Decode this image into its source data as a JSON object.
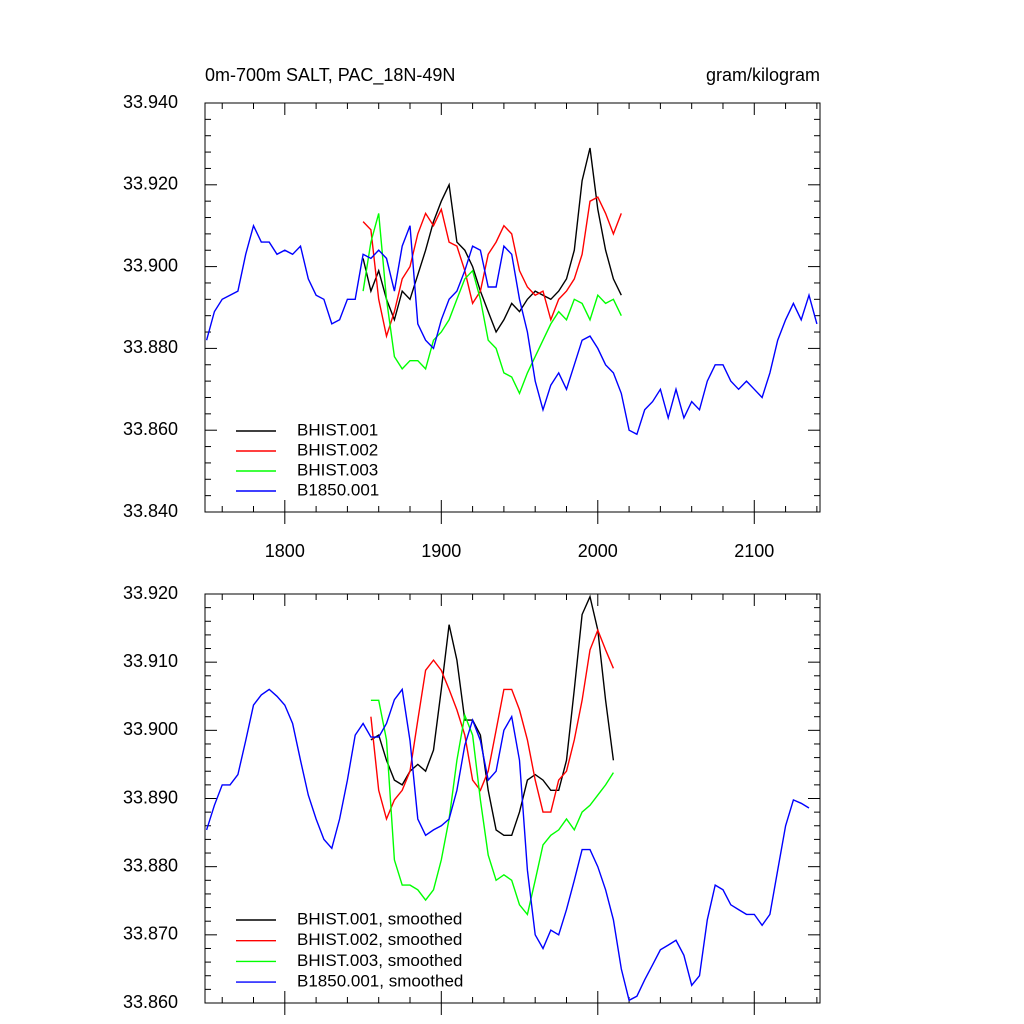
{
  "chart_data": [
    {
      "type": "line",
      "title": "0m-700m SALT, PAC_18N-49N",
      "subtitle": "gram/kilogram",
      "xlim": [
        1749,
        2142
      ],
      "xticks": [
        1800,
        1900,
        2000,
        2100
      ],
      "ylim": [
        33.84,
        33.94
      ],
      "yticks": [
        {
          "value": 33.84,
          "label": "33.840"
        },
        {
          "value": 33.86,
          "label": "33.860"
        },
        {
          "value": 33.88,
          "label": "33.880"
        },
        {
          "value": 33.9,
          "label": "33.900"
        },
        {
          "value": 33.92,
          "label": "33.920"
        },
        {
          "value": 33.94,
          "label": "33.940"
        }
      ],
      "legend": "lower left",
      "series": [
        {
          "name": "BHIST.001",
          "color": "#000000",
          "x": [
            1850,
            1855,
            1860,
            1865,
            1870,
            1875,
            1880,
            1885,
            1890,
            1895,
            1900,
            1905,
            1910,
            1915,
            1920,
            1925,
            1930,
            1935,
            1940,
            1945,
            1950,
            1955,
            1960,
            1965,
            1970,
            1975,
            1980,
            1985,
            1990,
            1995,
            2000,
            2005,
            2010,
            2015
          ],
          "values": [
            33.902,
            33.894,
            33.899,
            33.892,
            33.887,
            33.894,
            33.892,
            33.898,
            33.904,
            33.911,
            33.916,
            33.92,
            33.906,
            33.904,
            33.9,
            33.894,
            33.889,
            33.884,
            33.887,
            33.891,
            33.889,
            33.892,
            33.894,
            33.893,
            33.892,
            33.894,
            33.897,
            33.904,
            33.921,
            33.929,
            33.914,
            33.904,
            33.897,
            33.893
          ]
        },
        {
          "name": "BHIST.002",
          "color": "#ff0000",
          "x": [
            1850,
            1855,
            1860,
            1865,
            1870,
            1875,
            1880,
            1885,
            1890,
            1895,
            1900,
            1905,
            1910,
            1915,
            1920,
            1925,
            1930,
            1935,
            1940,
            1945,
            1950,
            1955,
            1960,
            1965,
            1970,
            1975,
            1980,
            1985,
            1990,
            1995,
            2000,
            2005,
            2010,
            2015
          ],
          "values": [
            33.911,
            33.909,
            33.892,
            33.883,
            33.889,
            33.897,
            33.9,
            33.908,
            33.913,
            33.91,
            33.914,
            33.906,
            33.905,
            33.899,
            33.891,
            33.894,
            33.903,
            33.906,
            33.91,
            33.908,
            33.899,
            33.895,
            33.893,
            33.894,
            33.887,
            33.892,
            33.894,
            33.897,
            33.903,
            33.916,
            33.917,
            33.913,
            33.908,
            33.913
          ]
        },
        {
          "name": "BHIST.003",
          "color": "#00ff00",
          "x": [
            1850,
            1855,
            1860,
            1865,
            1870,
            1875,
            1880,
            1885,
            1890,
            1895,
            1900,
            1905,
            1910,
            1915,
            1920,
            1925,
            1930,
            1935,
            1940,
            1945,
            1950,
            1955,
            1960,
            1965,
            1970,
            1975,
            1980,
            1985,
            1990,
            1995,
            2000,
            2005,
            2010,
            2015
          ],
          "values": [
            33.894,
            33.906,
            33.913,
            33.892,
            33.878,
            33.875,
            33.877,
            33.877,
            33.875,
            33.882,
            33.884,
            33.887,
            33.892,
            33.897,
            33.899,
            33.892,
            33.882,
            33.88,
            33.874,
            33.873,
            33.869,
            33.874,
            33.878,
            33.882,
            33.886,
            33.889,
            33.887,
            33.892,
            33.891,
            33.887,
            33.893,
            33.891,
            33.892,
            33.888
          ]
        },
        {
          "name": "B1850.001",
          "color": "#0000ff",
          "x": [
            1750,
            1755,
            1760,
            1765,
            1770,
            1775,
            1780,
            1785,
            1790,
            1795,
            1800,
            1805,
            1810,
            1815,
            1820,
            1825,
            1830,
            1835,
            1840,
            1845,
            1850,
            1855,
            1860,
            1865,
            1870,
            1875,
            1880,
            1885,
            1890,
            1895,
            1900,
            1905,
            1910,
            1915,
            1920,
            1925,
            1930,
            1935,
            1940,
            1945,
            1950,
            1955,
            1960,
            1965,
            1970,
            1975,
            1980,
            1985,
            1990,
            1995,
            2000,
            2005,
            2010,
            2015,
            2020,
            2025,
            2030,
            2035,
            2040,
            2045,
            2050,
            2055,
            2060,
            2065,
            2070,
            2075,
            2080,
            2085,
            2090,
            2095,
            2100,
            2105,
            2110,
            2115,
            2120,
            2125,
            2130,
            2135,
            2140
          ],
          "values": [
            33.882,
            33.889,
            33.892,
            33.893,
            33.894,
            33.903,
            33.91,
            33.906,
            33.906,
            33.903,
            33.904,
            33.903,
            33.905,
            33.897,
            33.893,
            33.892,
            33.886,
            33.887,
            33.892,
            33.892,
            33.903,
            33.902,
            33.904,
            33.902,
            33.894,
            33.905,
            33.91,
            33.886,
            33.882,
            33.88,
            33.887,
            33.892,
            33.894,
            33.899,
            33.905,
            33.904,
            33.895,
            33.895,
            33.905,
            33.903,
            33.892,
            33.884,
            33.872,
            33.865,
            33.871,
            33.874,
            33.87,
            33.876,
            33.882,
            33.883,
            33.88,
            33.876,
            33.874,
            33.869,
            33.86,
            33.859,
            33.865,
            33.867,
            33.87,
            33.863,
            33.87,
            33.863,
            33.867,
            33.865,
            33.872,
            33.876,
            33.876,
            33.872,
            33.87,
            33.872,
            33.87,
            33.868,
            33.874,
            33.882,
            33.887,
            33.891,
            33.887,
            33.893,
            33.886
          ]
        }
      ]
    },
    {
      "type": "line",
      "xlim": [
        1749,
        2142
      ],
      "ylim": [
        33.86,
        33.92
      ],
      "yticks": [
        {
          "value": 33.86,
          "label": "33.860"
        },
        {
          "value": 33.87,
          "label": "33.870"
        },
        {
          "value": 33.88,
          "label": "33.880"
        },
        {
          "value": 33.89,
          "label": "33.890"
        },
        {
          "value": 33.9,
          "label": "33.900"
        },
        {
          "value": 33.91,
          "label": "33.910"
        },
        {
          "value": 33.92,
          "label": "33.920"
        }
      ],
      "legend": "lower left",
      "series": [
        {
          "name": "BHIST.001, smoothed",
          "color": "#000000",
          "x": [
            1855,
            1860,
            1865,
            1870,
            1875,
            1880,
            1885,
            1890,
            1895,
            1900,
            1905,
            1910,
            1915,
            1920,
            1925,
            1930,
            1935,
            1940,
            1945,
            1950,
            1955,
            1960,
            1965,
            1970,
            1975,
            1980,
            1985,
            1990,
            1995,
            2000,
            2005,
            2010
          ],
          "values": [
            33.8986,
            33.8993,
            33.8956,
            33.8927,
            33.892,
            33.894,
            33.895,
            33.894,
            33.8971,
            33.906,
            33.9155,
            33.9103,
            33.9015,
            33.9015,
            33.8993,
            33.8912,
            33.8854,
            33.8846,
            33.8846,
            33.888,
            33.8927,
            33.8935,
            33.8927,
            33.8912,
            33.8912,
            33.8956,
            33.906,
            33.917,
            33.9196,
            33.9147,
            33.9044,
            33.8956
          ]
        },
        {
          "name": "BHIST.002, smoothed",
          "color": "#ff0000",
          "x": [
            1855,
            1860,
            1865,
            1870,
            1875,
            1880,
            1885,
            1890,
            1895,
            1900,
            1905,
            1910,
            1915,
            1920,
            1925,
            1930,
            1935,
            1940,
            1945,
            1950,
            1955,
            1960,
            1965,
            1970,
            1975,
            1980,
            1985,
            1990,
            1995,
            2000,
            2005,
            2010
          ],
          "values": [
            33.902,
            33.8912,
            33.887,
            33.8898,
            33.8912,
            33.894,
            33.9015,
            33.9088,
            33.9103,
            33.9088,
            33.906,
            33.903,
            33.8993,
            33.8927,
            33.8912,
            33.894,
            33.9,
            33.906,
            33.906,
            33.903,
            33.8986,
            33.8927,
            33.888,
            33.888,
            33.8927,
            33.894,
            33.8986,
            33.9044,
            33.9118,
            33.9147,
            33.9118,
            33.9091
          ]
        },
        {
          "name": "BHIST.003, smoothed",
          "color": "#00ff00",
          "x": [
            1855,
            1860,
            1865,
            1870,
            1875,
            1880,
            1885,
            1890,
            1895,
            1900,
            1905,
            1910,
            1915,
            1920,
            1925,
            1930,
            1935,
            1940,
            1945,
            1950,
            1955,
            1960,
            1965,
            1970,
            1975,
            1980,
            1985,
            1990,
            1995,
            2000,
            2005,
            2010
          ],
          "values": [
            33.9044,
            33.9044,
            33.8986,
            33.881,
            33.8773,
            33.8773,
            33.8766,
            33.8751,
            33.8766,
            33.881,
            33.887,
            33.8956,
            33.9022,
            33.8993,
            33.8898,
            33.8817,
            33.878,
            33.8788,
            33.878,
            33.8744,
            33.873,
            33.878,
            33.8832,
            33.8846,
            33.8854,
            33.887,
            33.8854,
            33.888,
            33.889,
            33.8905,
            33.892,
            33.8938
          ]
        },
        {
          "name": "B1850.001, smoothed",
          "color": "#0000ff",
          "x": [
            1750,
            1755,
            1760,
            1765,
            1770,
            1775,
            1780,
            1785,
            1790,
            1795,
            1800,
            1805,
            1810,
            1815,
            1820,
            1825,
            1830,
            1835,
            1840,
            1845,
            1850,
            1855,
            1860,
            1865,
            1870,
            1875,
            1880,
            1885,
            1890,
            1895,
            1900,
            1905,
            1910,
            1915,
            1920,
            1925,
            1930,
            1935,
            1940,
            1945,
            1950,
            1955,
            1960,
            1965,
            1970,
            1975,
            1980,
            1985,
            1990,
            1995,
            2000,
            2005,
            2010,
            2015,
            2020,
            2025,
            2030,
            2035,
            2040,
            2045,
            2050,
            2055,
            2060,
            2065,
            2070,
            2075,
            2080,
            2085,
            2090,
            2095,
            2100,
            2105,
            2110,
            2115,
            2120,
            2125,
            2130,
            2135
          ],
          "values": [
            33.8854,
            33.889,
            33.892,
            33.892,
            33.8935,
            33.8985,
            33.9037,
            33.9052,
            33.906,
            33.905,
            33.9037,
            33.901,
            33.8956,
            33.8905,
            33.887,
            33.884,
            33.8827,
            33.887,
            33.8927,
            33.8993,
            33.901,
            33.899,
            33.899,
            33.901,
            33.9045,
            33.906,
            33.8985,
            33.887,
            33.8846,
            33.8854,
            33.886,
            33.887,
            33.8912,
            33.8978,
            33.9015,
            33.8985,
            33.8927,
            33.894,
            33.9,
            33.902,
            33.8956,
            33.8795,
            33.87,
            33.868,
            33.8707,
            33.87,
            33.8737,
            33.878,
            33.8825,
            33.8825,
            33.88,
            33.8766,
            33.8722,
            33.865,
            33.8604,
            33.861,
            33.8634,
            33.8656,
            33.8678,
            33.8685,
            33.8692,
            33.867,
            33.8626,
            33.864,
            33.8722,
            33.8773,
            33.8766,
            33.8744,
            33.8737,
            33.873,
            33.873,
            33.8714,
            33.873,
            33.8795,
            33.886,
            33.8898,
            33.8893,
            33.8886
          ]
        }
      ]
    }
  ]
}
